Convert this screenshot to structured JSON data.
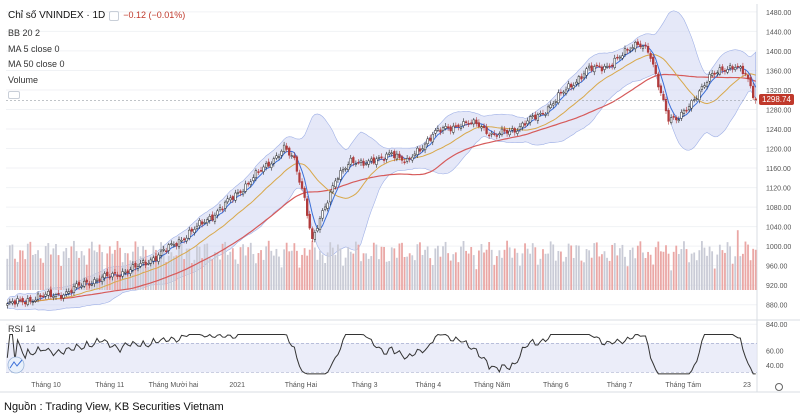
{
  "header": {
    "title": "Chỉ số VNINDEX · 1D",
    "change": "−0.12 (−0.01%)",
    "indicators": [
      "BB 20 2",
      "MA 5 close 0",
      "MA 50 close 0",
      "Volume"
    ],
    "rsi_label": "RSI 14"
  },
  "last_price_label": "1298.74",
  "source_text": "Nguồn : Trading View, KB Securities Vietnam",
  "colors": {
    "up": "#2a2a2a",
    "down": "#b03a3a",
    "ma5": "#3a6fd8",
    "ma50": "#d65a5a",
    "bb_mid": "#d8a84a",
    "bb_fill": "#cfd6f2",
    "vol_up": "#c9cbd6",
    "vol_down": "#eaa7a5",
    "rsi_line": "#333333",
    "rsi_band": "#e2e6f7"
  },
  "chart_data": [
    {
      "type": "line",
      "subtype": "candlestick-with-overlays",
      "title": "Chỉ số VNINDEX · 1D",
      "x_tick_labels": [
        "Tháng 10",
        "Tháng 11",
        "Tháng Mười hai",
        "2021",
        "Tháng Hai",
        "Tháng 3",
        "Tháng 4",
        "Tháng Năm",
        "Tháng 6",
        "Tháng 7",
        "Tháng Tám",
        "23"
      ],
      "y_tick_labels": [
        "840.00",
        "880.00",
        "920.00",
        "960.00",
        "1000.00",
        "1040.00",
        "1080.00",
        "1120.00",
        "1160.00",
        "1200.00",
        "1240.00",
        "1280.00",
        "1320.00",
        "1360.00",
        "1400.00",
        "1440.00",
        "1480.00"
      ],
      "ylim": [
        820,
        1490
      ],
      "close_keypoints": [
        {
          "i": 0,
          "v": 880
        },
        {
          "i": 12,
          "v": 895
        },
        {
          "i": 24,
          "v": 905
        },
        {
          "i": 30,
          "v": 925
        },
        {
          "i": 36,
          "v": 932
        },
        {
          "i": 50,
          "v": 955
        },
        {
          "i": 60,
          "v": 985
        },
        {
          "i": 72,
          "v": 1030
        },
        {
          "i": 84,
          "v": 1080
        },
        {
          "i": 96,
          "v": 1140
        },
        {
          "i": 104,
          "v": 1180
        },
        {
          "i": 108,
          "v": 1200
        },
        {
          "i": 112,
          "v": 1175
        },
        {
          "i": 116,
          "v": 1100
        },
        {
          "i": 119,
          "v": 1010
        },
        {
          "i": 124,
          "v": 1080
        },
        {
          "i": 128,
          "v": 1140
        },
        {
          "i": 134,
          "v": 1170
        },
        {
          "i": 140,
          "v": 1175
        },
        {
          "i": 146,
          "v": 1175
        },
        {
          "i": 150,
          "v": 1195
        },
        {
          "i": 156,
          "v": 1170
        },
        {
          "i": 166,
          "v": 1230
        },
        {
          "i": 176,
          "v": 1250
        },
        {
          "i": 184,
          "v": 1250
        },
        {
          "i": 190,
          "v": 1225
        },
        {
          "i": 198,
          "v": 1240
        },
        {
          "i": 208,
          "v": 1270
        },
        {
          "i": 218,
          "v": 1320
        },
        {
          "i": 226,
          "v": 1360
        },
        {
          "i": 234,
          "v": 1370
        },
        {
          "i": 240,
          "v": 1390
        },
        {
          "i": 246,
          "v": 1420
        },
        {
          "i": 250,
          "v": 1400
        },
        {
          "i": 254,
          "v": 1330
        },
        {
          "i": 258,
          "v": 1265
        },
        {
          "i": 262,
          "v": 1260
        },
        {
          "i": 266,
          "v": 1285
        },
        {
          "i": 270,
          "v": 1320
        },
        {
          "i": 274,
          "v": 1345
        },
        {
          "i": 280,
          "v": 1365
        },
        {
          "i": 284,
          "v": 1370
        },
        {
          "i": 288,
          "v": 1350
        },
        {
          "i": 292,
          "v": 1299
        }
      ],
      "last_close": 1298.74,
      "series": [
        "BB 20 2",
        "MA 5 close 0",
        "MA 50 close 0"
      ]
    },
    {
      "type": "bar",
      "name": "Volume"
    },
    {
      "type": "line",
      "name": "RSI 14",
      "y_tick_labels": [
        "40.00",
        "60.00"
      ],
      "band": [
        30,
        70
      ]
    }
  ]
}
